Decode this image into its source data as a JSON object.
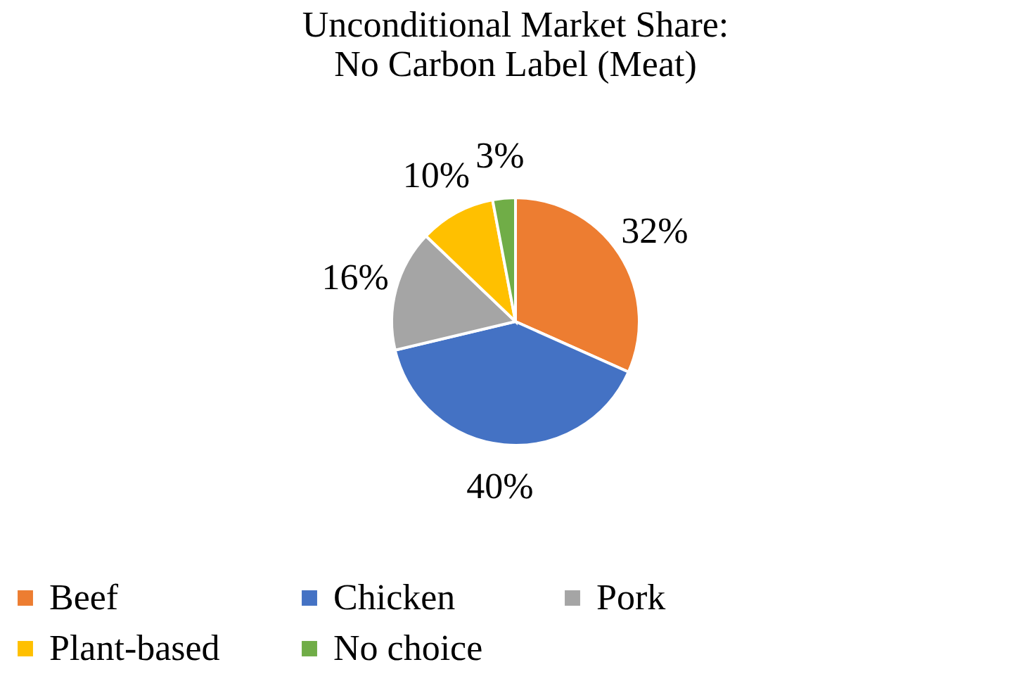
{
  "chart_data": {
    "type": "pie",
    "title": "Unconditional Market Share:\nNo Carbon Label (Meat)",
    "categories": [
      "Beef",
      "Chicken",
      "Pork",
      "Plant-based",
      "No choice"
    ],
    "values": [
      32,
      40,
      16,
      10,
      3
    ],
    "colors": [
      "#ed7d31",
      "#4472c4",
      "#a5a5a5",
      "#ffc000",
      "#70ad47"
    ],
    "value_labels": [
      "32%",
      "40%",
      "16%",
      "10%",
      "3%"
    ],
    "legend": "bottom"
  }
}
